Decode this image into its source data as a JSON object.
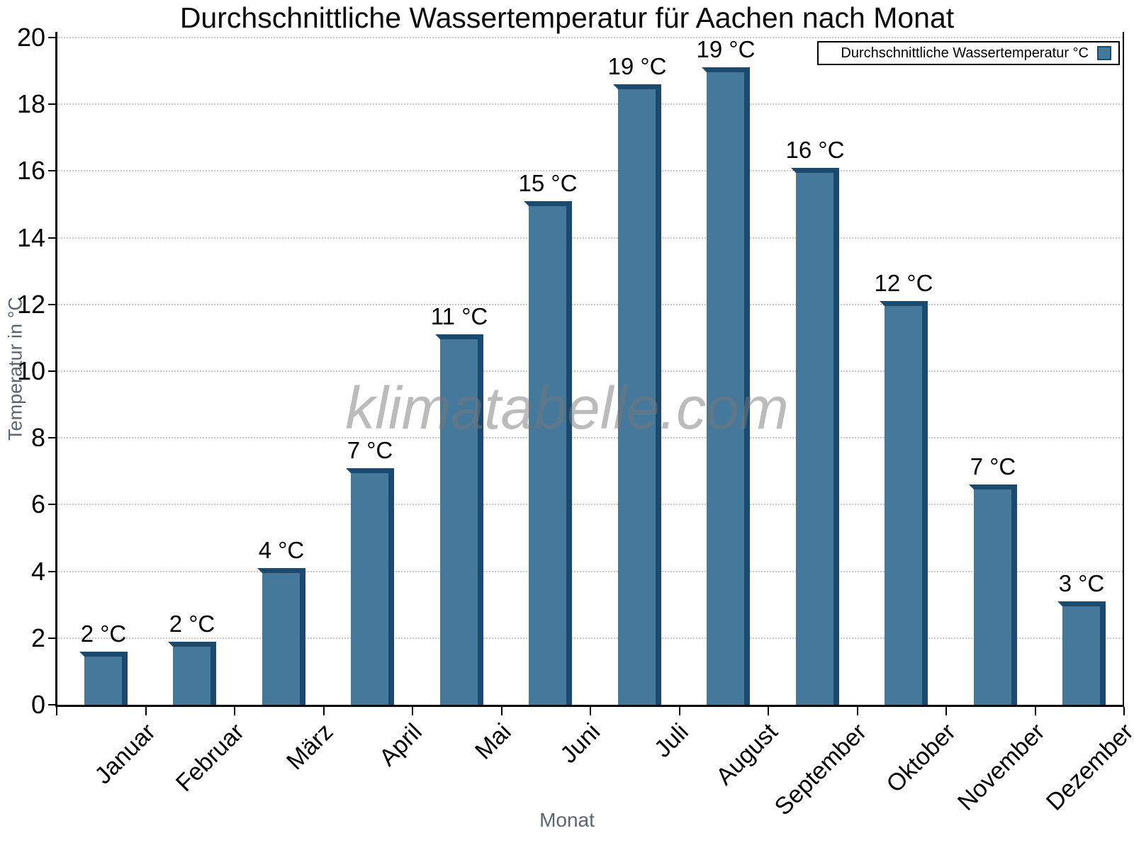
{
  "title": "Durchschnittliche Wassertemperatur für Aachen nach Monat",
  "legend": {
    "label": "Durchschnittliche Wassertemperatur °C"
  },
  "watermark": "klimatabelle.com",
  "chart_data": {
    "type": "bar",
    "title": "Durchschnittliche Wassertemperatur für Aachen nach Monat",
    "xlabel": "Monat",
    "ylabel": "Temperatur in °C",
    "categories": [
      "Januar",
      "Februar",
      "März",
      "April",
      "Mai",
      "Juni",
      "Juli",
      "August",
      "September",
      "Oktober",
      "November",
      "Dezember"
    ],
    "values": [
      1.6,
      1.9,
      4.1,
      7.1,
      11.1,
      15.1,
      18.6,
      19.1,
      16.1,
      12.1,
      6.6,
      3.1
    ],
    "bar_labels": [
      "2 °C",
      "2 °C",
      "4 °C",
      "7 °C",
      "11 °C",
      "15 °C",
      "19 °C",
      "19 °C",
      "16 °C",
      "12 °C",
      "7 °C",
      "3 °C"
    ],
    "series_name": "Durchschnittliche Wassertemperatur °C",
    "ylim": [
      0,
      20
    ],
    "ytick_step": 2,
    "grid": "horizontal-dotted",
    "legend_position": "top-right",
    "watermark": "klimatabelle.com",
    "colors": {
      "bar_face": "#45799c",
      "bar_shade": "#1b4a6e",
      "grid": "#c9c9c9",
      "axis": "#000000",
      "muted_text": "#5b6670",
      "watermark": "#787878"
    }
  }
}
